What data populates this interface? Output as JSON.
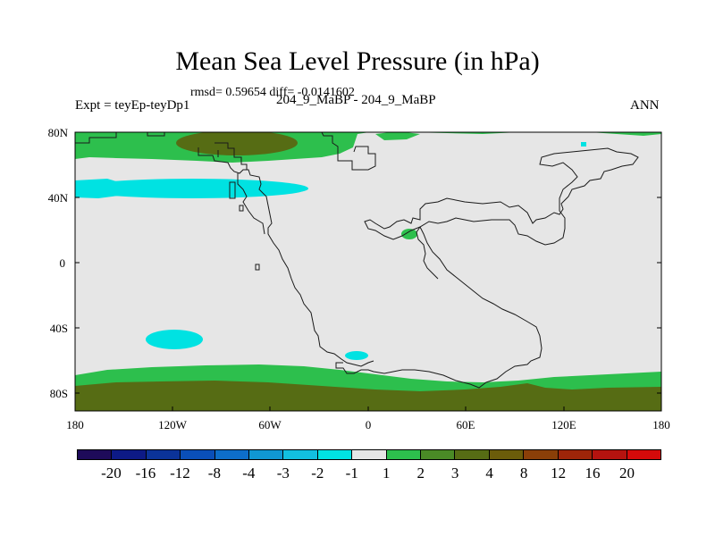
{
  "title": "Mean Sea Level Pressure (in hPa)",
  "stats": "rmsd= 0.59654 diff= -0.0141602",
  "left_label": "Expt = teyEp-teyDp1",
  "center_label": "204_9_MaBP - 204_9_MaBP",
  "right_label": "ANN",
  "axes": {
    "lat_ticks": [
      "80N",
      "40N",
      "0",
      "40S",
      "80S"
    ],
    "lon_ticks": [
      "180",
      "120W",
      "60W",
      "0",
      "60E",
      "120E",
      "180"
    ]
  },
  "colorbar": {
    "colors": [
      "#1e0b5a",
      "#0d1a86",
      "#0b3399",
      "#0a4fb8",
      "#0d6ec9",
      "#1097d3",
      "#12bfe0",
      "#00e2e2",
      "#e6e6e6",
      "#2dbf4d",
      "#4a8a26",
      "#566c14",
      "#6b5c0a",
      "#8a3f08",
      "#9e2509",
      "#b5130f",
      "#d50a0a"
    ],
    "labels": [
      "-20",
      "-16",
      "-12",
      "-8",
      "-4",
      "-3",
      "-2",
      "-1",
      "1",
      "2",
      "3",
      "4",
      "8",
      "12",
      "16",
      "20"
    ]
  },
  "map_colors": {
    "background": "#e6e6e6",
    "green": "#2dbf4d",
    "olive": "#566c14",
    "cyan": "#00e2e2"
  }
}
